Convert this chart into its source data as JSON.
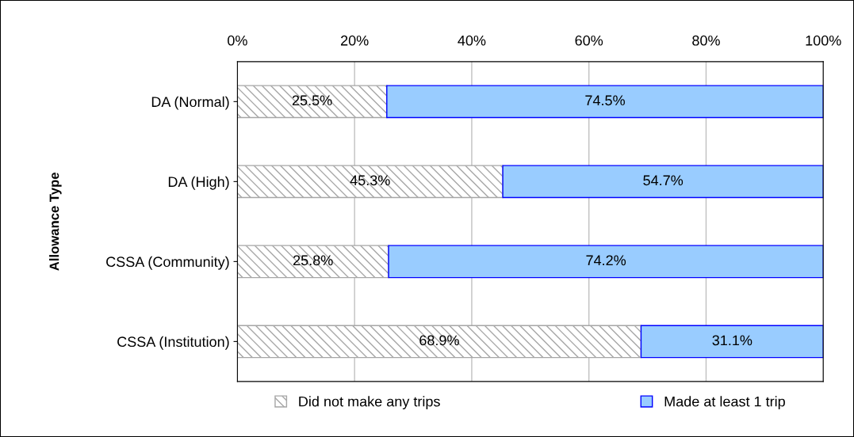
{
  "chart_data": {
    "type": "bar",
    "orientation": "horizontal",
    "stacked": true,
    "ylabel": "Allowance Type",
    "categories": [
      "DA (Normal)",
      "DA (High)",
      "CSSA (Community)",
      "CSSA (Institution)"
    ],
    "series": [
      {
        "name": "Did not make any trips",
        "color": "#a6a6a6",
        "values": [
          25.5,
          45.3,
          25.8,
          68.9
        ],
        "value_labels": [
          "25.5%",
          "45.3%",
          "25.8%",
          "68.9%"
        ]
      },
      {
        "name": "Made at least 1 trip",
        "color": "#99ccff",
        "values": [
          74.5,
          54.7,
          74.2,
          31.1
        ],
        "value_labels": [
          "74.5%",
          "54.7%",
          "74.2%",
          "31.1%"
        ]
      }
    ],
    "xlim": [
      0,
      100
    ],
    "xticks": [
      {
        "value": 0,
        "label": "0%"
      },
      {
        "value": 20,
        "label": "20%"
      },
      {
        "value": 40,
        "label": "40%"
      },
      {
        "value": 60,
        "label": "60%"
      },
      {
        "value": 80,
        "label": "80%"
      },
      {
        "value": 100,
        "label": "100%"
      }
    ],
    "grid": "x",
    "legend": "bottom"
  }
}
